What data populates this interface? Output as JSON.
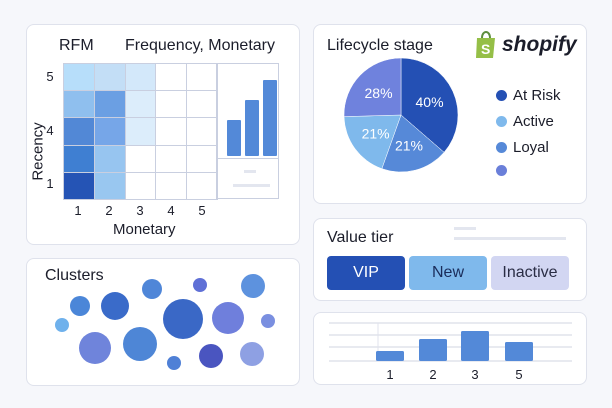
{
  "rfm": {
    "title": "RFM",
    "subtitle": "Frequency, Monetary",
    "ylabel": "Recency",
    "xlabel": "Monetary",
    "y_ticks": [
      "5",
      "4",
      "1"
    ],
    "x_ticks": [
      "1",
      "2",
      "3",
      "4",
      "5"
    ],
    "heatmap": [
      [
        "#b7defa",
        "#c3def6",
        "#d3e8fa",
        "#fff",
        "#fff"
      ],
      [
        "#8fbfee",
        "#6b9fe3",
        "#dcedfb",
        "#fff",
        "#fff"
      ],
      [
        "#5288d6",
        "#76a6e8",
        "#dcedfb",
        "#fff",
        "#fff"
      ],
      [
        "#3f7fd2",
        "#97c5f0",
        "#fff",
        "#fff",
        "#fff"
      ],
      [
        "#2554b5",
        "#99c7f0",
        "#fff",
        "#fff",
        "#fff"
      ]
    ],
    "mini_bars": [
      0.45,
      0.7,
      0.95
    ]
  },
  "clusters": {
    "title": "Clusters"
  },
  "lifecycle": {
    "title": "Lifecycle stage",
    "brand": "shopify",
    "chart_data": {
      "type": "pie",
      "slices": [
        {
          "label": "At Risk",
          "value": 40,
          "color": "#2450b4"
        },
        {
          "label": "Loyal",
          "value": 21,
          "color": "#5689d8"
        },
        {
          "label": "Active",
          "value": 21,
          "color": "#7fb9ec"
        },
        {
          "label": "",
          "value": 28,
          "color": "#6f82dd"
        }
      ],
      "legend": [
        {
          "label": "At Risk",
          "color": "#2450b4"
        },
        {
          "label": "Active",
          "color": "#7fb9ec"
        },
        {
          "label": "Loyal",
          "color": "#5689d8"
        },
        {
          "label": "",
          "color": "#6a7fd9"
        }
      ]
    }
  },
  "value_tier": {
    "title": "Value tier",
    "buttons": [
      {
        "label": "VIP",
        "bg": "#2450b4",
        "fg": "#ffffff"
      },
      {
        "label": "New",
        "bg": "#7fb9ec",
        "fg": "#1a2c5a"
      },
      {
        "label": "Inactive",
        "bg": "#d2d6f2",
        "fg": "#2a2d45"
      }
    ]
  },
  "bars": {
    "chart_data": {
      "type": "bar",
      "categories": [
        "1",
        "2",
        "3",
        "5"
      ],
      "values": [
        10,
        22,
        30,
        19
      ],
      "ylim": [
        0,
        40
      ]
    }
  }
}
